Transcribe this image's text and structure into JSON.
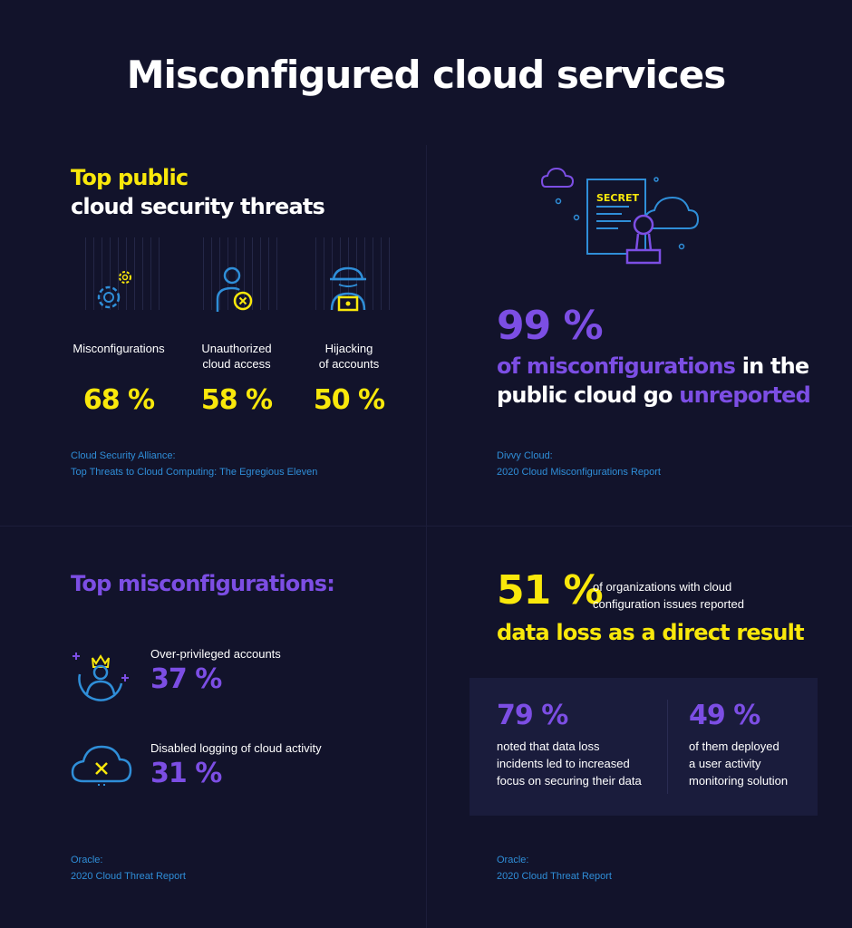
{
  "title": "Misconfigured cloud services",
  "threats": {
    "heading_line1": "Top public",
    "heading_line2": "cloud security threats",
    "items": [
      {
        "label_line1": "Misconfigurations",
        "label_line2": "",
        "value": "68 %",
        "icon": "gear-icon"
      },
      {
        "label_line1": "Unauthorized",
        "label_line2": "cloud access",
        "value": "58 %",
        "icon": "user-denied-icon"
      },
      {
        "label_line1": "Hijacking",
        "label_line2": "of accounts",
        "value": "50 %",
        "icon": "hacker-icon"
      }
    ],
    "source_line1": "Cloud Security Alliance:",
    "source_line2": "Top Threats to Cloud Computing: The Egregious Eleven"
  },
  "unreported": {
    "value": "99 %",
    "line1_a": "of misconfigurations",
    "line1_b": " in the",
    "line2_a": "public cloud go ",
    "line2_b": "unreported",
    "secret_label": "SECRET",
    "source_line1": "Divvy Cloud:",
    "source_line2": "2020 Cloud Misconfigurations Report"
  },
  "misconfigs": {
    "heading": "Top misconfigurations:",
    "items": [
      {
        "label": "Over-privileged accounts",
        "value": "37 %",
        "icon": "crowned-user-icon"
      },
      {
        "label": "Disabled logging of cloud activity",
        "value": "31 %",
        "icon": "cloud-x-icon"
      }
    ],
    "source_line1": "Oracle:",
    "source_line2": "2020 Cloud Threat Report"
  },
  "data_loss": {
    "value": "51 %",
    "text_line1": "of organizations with cloud",
    "text_line2": "configuration issues reported",
    "headline": "data loss as a direct result",
    "stats": [
      {
        "value": "79 %",
        "line1": "noted that data loss",
        "line2": "incidents led to increased",
        "line3": "focus on securing their data"
      },
      {
        "value": "49 %",
        "line1": "of them deployed",
        "line2": "a user activity",
        "line3": "monitoring solution"
      }
    ],
    "source_line1": "Oracle:",
    "source_line2": "2020 Cloud Threat Report"
  },
  "colors": {
    "background": "#12132b",
    "yellow": "#f9e80b",
    "purple": "#7c4ee4",
    "blue": "#2f8ed8"
  }
}
